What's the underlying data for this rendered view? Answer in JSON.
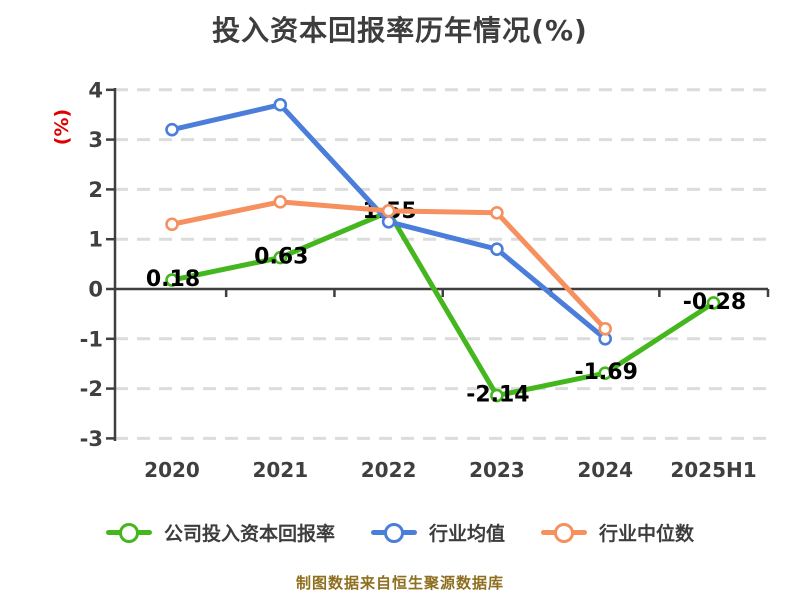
{
  "footer": "制图数据来自恒生聚源数据库",
  "colors": {
    "background": "#ffffff",
    "title_text": "#3d3d3d",
    "axis": "#3f3f3f",
    "grid": "#dcdcdc",
    "data_label": "#000000",
    "ylabel_unit": "#e00000",
    "footer_text": "#8e6f1f",
    "marker_fill": "#ffffff"
  },
  "chart_data": {
    "type": "line",
    "title": "投入资本回报率历年情况(%)",
    "ylabel": "(%)",
    "xlabel": "",
    "categories": [
      "2020",
      "2021",
      "2022",
      "2023",
      "2024",
      "2025H1"
    ],
    "series": [
      {
        "key": "company-roic",
        "name": "公司投入资本回报率",
        "color": "#44b71e",
        "values": [
          0.18,
          0.63,
          1.55,
          -2.14,
          -1.69,
          -0.28
        ],
        "point_labels": [
          "0.18",
          "0.63",
          "1.55",
          "-2.14",
          "-1.69",
          "-0.28"
        ]
      },
      {
        "key": "industry-mean",
        "name": "行业均值",
        "color": "#4b7eda",
        "values": [
          3.2,
          3.7,
          1.35,
          0.8,
          -1.0,
          null
        ],
        "point_labels": null
      },
      {
        "key": "industry-median",
        "name": "行业中位数",
        "color": "#f6905e",
        "values": [
          1.3,
          1.75,
          1.57,
          1.53,
          -0.8,
          null
        ],
        "point_labels": null
      }
    ],
    "ylim": [
      -3,
      4
    ],
    "yticks": [
      4,
      3,
      2,
      1,
      0,
      -1,
      -2,
      -3
    ],
    "grid": "horizontal-dashed",
    "zero_axis": "solid",
    "legend_position": "bottom",
    "marker": "circle-white-fill"
  }
}
